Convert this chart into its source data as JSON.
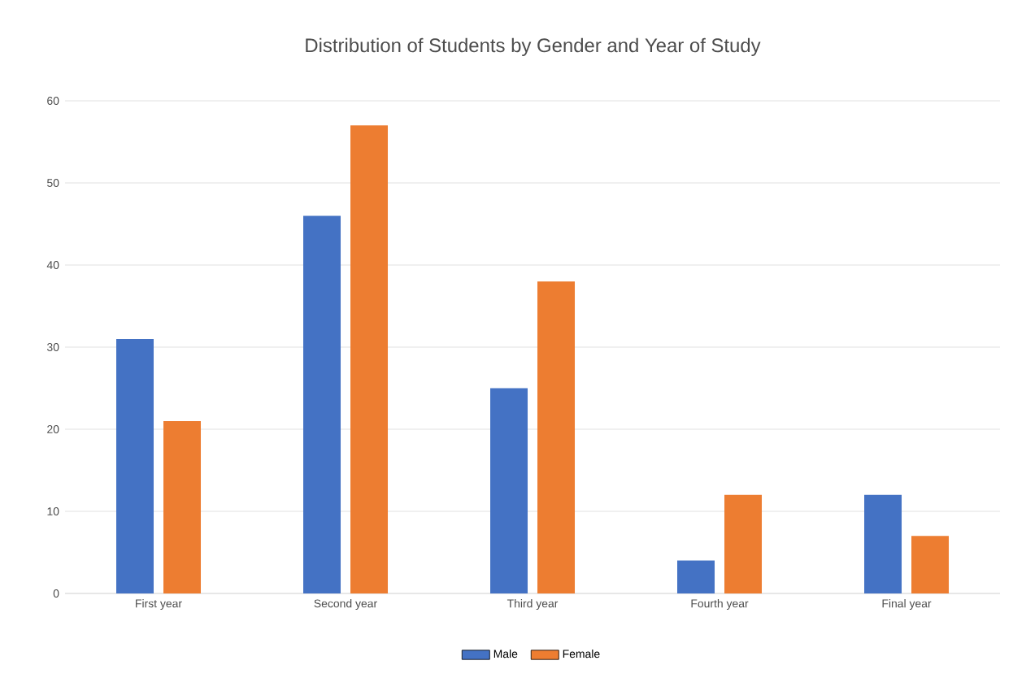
{
  "chart_data": {
    "type": "bar",
    "title": "Distribution of Students by Gender and Year of Study",
    "categories": [
      "First year",
      "Second year",
      "Third year",
      "Fourth year",
      "Final year"
    ],
    "series": [
      {
        "name": "Male",
        "color": "#4472c4",
        "values": [
          31,
          46,
          25,
          4,
          12
        ]
      },
      {
        "name": "Female",
        "color": "#ed7d31",
        "values": [
          21,
          57,
          38,
          12,
          7
        ]
      }
    ],
    "ylim": [
      0,
      60
    ],
    "yticks": [
      0,
      10,
      20,
      30,
      40,
      50,
      60
    ],
    "grid": "y",
    "legend": "bottom"
  }
}
